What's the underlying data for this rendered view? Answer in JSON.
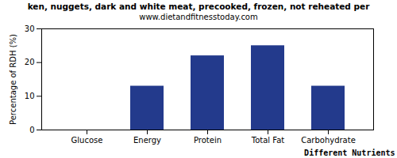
{
  "chart_data": {
    "type": "bar",
    "title": "ken, nuggets, dark and white meat, precooked, frozen, not reheated per",
    "subtitle": "www.dietandfitnesstoday.com",
    "x_label": "Different Nutrients",
    "y_label": "Percentage of RDH (%)",
    "categories": [
      "Glucose",
      "Energy",
      "Protein",
      "Total Fat",
      "Carbohydrate"
    ],
    "values": [
      0,
      13,
      22,
      25,
      13
    ],
    "color": "#233a8c",
    "ylim": [
      0,
      30
    ],
    "yticks": [
      0,
      10,
      20,
      30
    ],
    "grid": false
  }
}
